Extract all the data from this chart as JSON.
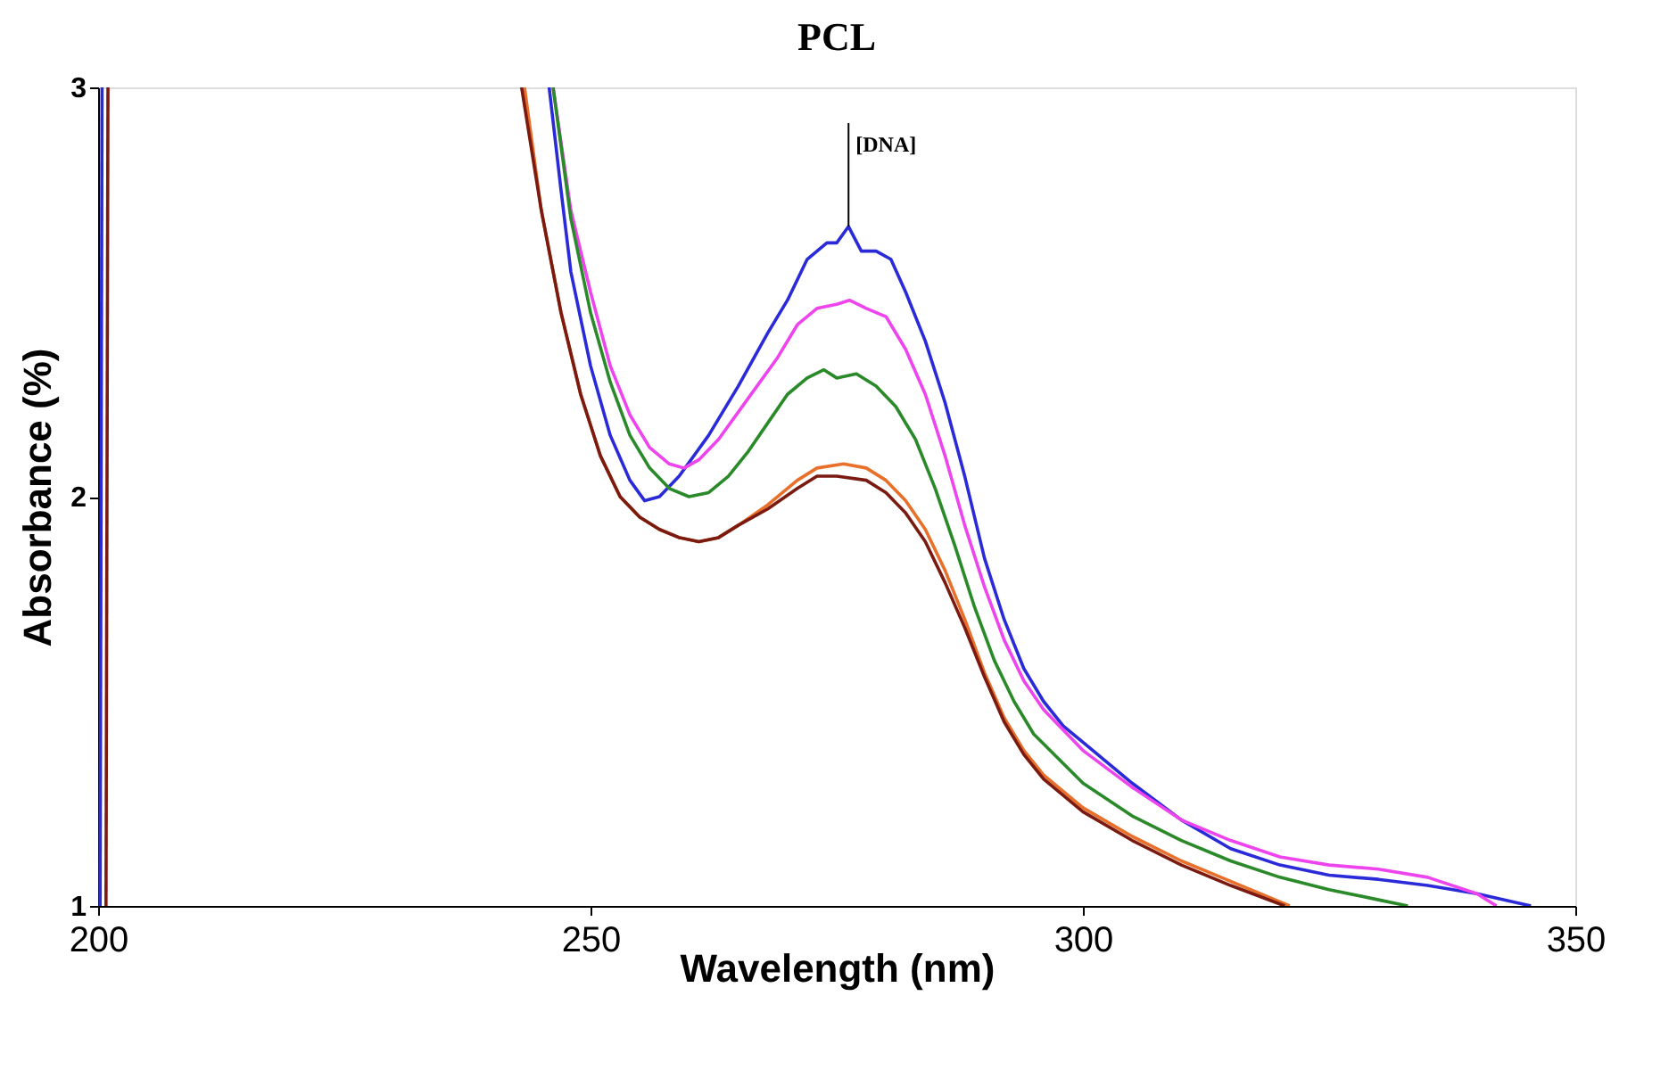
{
  "chart_data": {
    "type": "line",
    "title": "PCL",
    "xlabel": "Wavelength (nm)",
    "ylabel": "Absorbance (%)",
    "xlim": [
      200,
      350
    ],
    "xticks": [
      200,
      250,
      300,
      350
    ],
    "ylim": [
      1,
      3
    ],
    "yticks": [
      1,
      2,
      3
    ],
    "grid": false,
    "legend": false,
    "line_style": "solid",
    "annotations": [
      {
        "text": "[DNA]",
        "x": 276.2,
        "y": 2.66
      }
    ],
    "series": [
      {
        "color": "#2a2ad8",
        "x": [
          200.2,
          200.4,
          210,
          245.8,
          247,
          248,
          250,
          252,
          254,
          255.5,
          257,
          259,
          262,
          265,
          268,
          270,
          272,
          273,
          274,
          275,
          276.2,
          277.5,
          279,
          280.5,
          282,
          284,
          286,
          288,
          290,
          292,
          294,
          296,
          298,
          300,
          305,
          310,
          315,
          320,
          325,
          330,
          335,
          340,
          345.5
        ],
        "values": [
          1.0,
          3.0,
          null,
          3.0,
          2.75,
          2.55,
          2.32,
          2.15,
          2.04,
          1.99,
          2.0,
          2.05,
          2.15,
          2.27,
          2.4,
          2.48,
          2.58,
          2.6,
          2.62,
          2.62,
          2.66,
          2.6,
          2.6,
          2.58,
          2.5,
          2.38,
          2.23,
          2.05,
          1.85,
          1.7,
          1.58,
          1.5,
          1.44,
          1.4,
          1.3,
          1.21,
          1.14,
          1.1,
          1.075,
          1.065,
          1.05,
          1.03,
          1.0
        ]
      },
      {
        "color": "#ee44ee",
        "x": [
          246.2,
          248,
          250,
          252,
          254,
          256,
          258,
          259.5,
          261,
          263,
          266,
          269,
          271,
          273,
          275,
          276.3,
          278,
          280,
          282,
          284,
          286,
          288,
          290,
          292,
          294,
          296,
          300,
          305,
          310,
          315,
          320,
          325,
          330,
          335,
          340,
          342
        ],
        "values": [
          3.0,
          2.7,
          2.5,
          2.32,
          2.2,
          2.12,
          2.08,
          2.07,
          2.09,
          2.14,
          2.24,
          2.34,
          2.42,
          2.46,
          2.47,
          2.48,
          2.46,
          2.44,
          2.36,
          2.25,
          2.1,
          1.93,
          1.78,
          1.65,
          1.55,
          1.48,
          1.38,
          1.29,
          1.21,
          1.16,
          1.12,
          1.1,
          1.09,
          1.07,
          1.03,
          1.0
        ]
      },
      {
        "color": "#2a8a2a",
        "x": [
          246.2,
          248,
          250,
          252,
          254,
          256,
          258,
          260,
          262,
          264,
          266,
          268,
          270,
          272,
          273.7,
          275,
          277,
          279,
          281,
          283,
          285,
          287,
          289,
          291,
          293,
          295,
          300,
          305,
          310,
          315,
          320,
          325,
          330,
          333
        ],
        "values": [
          3.0,
          2.68,
          2.45,
          2.28,
          2.15,
          2.07,
          2.02,
          2.0,
          2.01,
          2.05,
          2.11,
          2.18,
          2.25,
          2.29,
          2.31,
          2.29,
          2.3,
          2.27,
          2.22,
          2.14,
          2.02,
          1.88,
          1.73,
          1.6,
          1.5,
          1.42,
          1.3,
          1.22,
          1.16,
          1.11,
          1.07,
          1.04,
          1.015,
          1.0
        ]
      },
      {
        "color": "#e8702a",
        "x": [
          243.3,
          245,
          247,
          249,
          251,
          253,
          255,
          257,
          259,
          261,
          263,
          265,
          268,
          271,
          273,
          275.7,
          278,
          280,
          282,
          284,
          286,
          288,
          290,
          292,
          294,
          296,
          300,
          305,
          310,
          315,
          321
        ],
        "values": [
          3.0,
          2.7,
          2.45,
          2.25,
          2.1,
          2.0,
          1.95,
          1.92,
          1.9,
          1.89,
          1.9,
          1.93,
          1.98,
          2.04,
          2.07,
          2.08,
          2.07,
          2.04,
          1.99,
          1.92,
          1.82,
          1.7,
          1.57,
          1.46,
          1.38,
          1.32,
          1.24,
          1.17,
          1.11,
          1.06,
          1.0
        ]
      },
      {
        "color": "#7a1a10",
        "x": [
          200.8,
          201.0,
          210,
          243.0,
          245,
          247,
          249,
          251,
          253,
          255,
          257,
          259,
          261,
          263,
          265,
          268,
          271,
          273,
          275,
          278,
          280,
          282,
          284,
          286,
          288,
          290,
          292,
          294,
          296,
          300,
          305,
          310,
          315,
          320.5
        ],
        "values": [
          1.0,
          3.0,
          null,
          3.0,
          2.7,
          2.45,
          2.25,
          2.1,
          2.0,
          1.95,
          1.92,
          1.9,
          1.89,
          1.9,
          1.93,
          1.97,
          2.02,
          2.05,
          2.05,
          2.04,
          2.01,
          1.96,
          1.89,
          1.79,
          1.68,
          1.56,
          1.45,
          1.37,
          1.31,
          1.23,
          1.16,
          1.1,
          1.05,
          1.0
        ]
      }
    ]
  }
}
